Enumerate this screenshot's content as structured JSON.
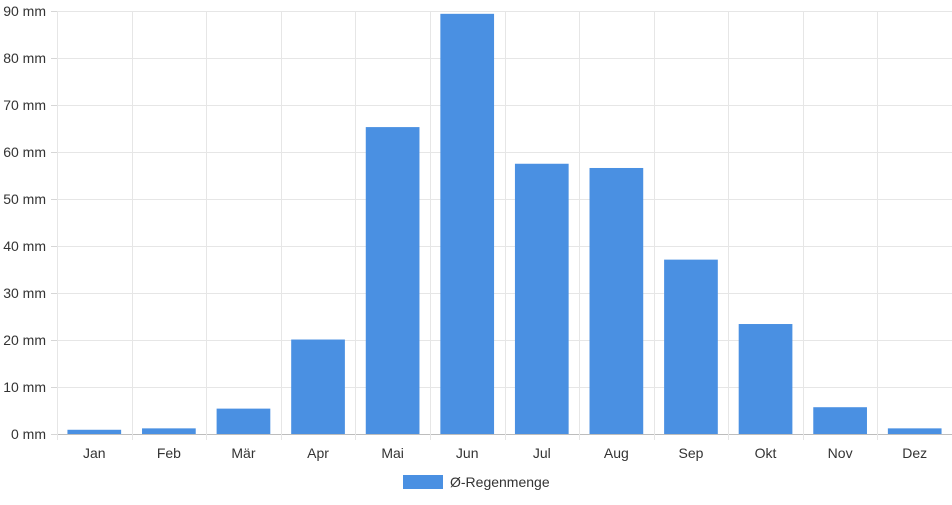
{
  "chart_data": {
    "type": "bar",
    "categories": [
      "Jan",
      "Feb",
      "Mär",
      "Apr",
      "Mai",
      "Jun",
      "Jul",
      "Aug",
      "Sep",
      "Okt",
      "Nov",
      "Dez"
    ],
    "series": [
      {
        "name": "Ø-Regenmenge",
        "values": [
          0.9,
          1.2,
          5.4,
          20.1,
          65.3,
          89.4,
          57.5,
          56.6,
          37.1,
          23.4,
          5.7,
          1.2
        ],
        "color": "#4a90e2"
      }
    ],
    "ylim": [
      0,
      90
    ],
    "yticks": [
      0,
      10,
      20,
      30,
      40,
      50,
      60,
      70,
      80,
      90
    ],
    "ytick_labels": [
      "0 mm",
      "10 mm",
      "20 mm",
      "30 mm",
      "40 mm",
      "50 mm",
      "60 mm",
      "70 mm",
      "80 mm",
      "90 mm"
    ],
    "title": "",
    "xlabel": "",
    "ylabel": "",
    "grid": true,
    "legend_position": "bottom-center"
  }
}
